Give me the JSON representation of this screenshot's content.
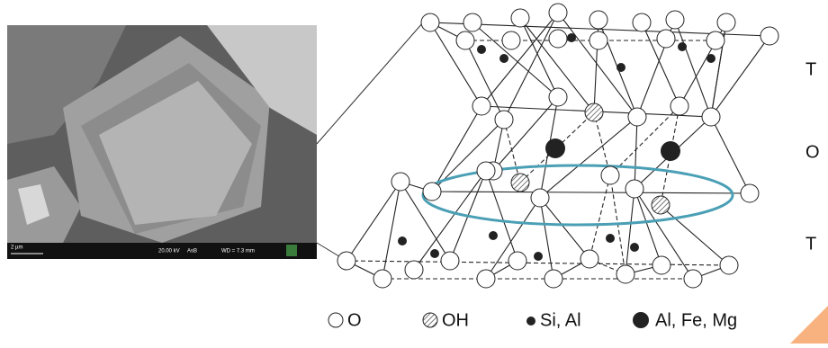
{
  "sem_image": {
    "scale_bar": "2 µm",
    "voltage": "20.00 kV",
    "detector": "AsB",
    "working_distance": "WD = 7.3 mm"
  },
  "layer_labels": [
    "T",
    "O",
    "T"
  ],
  "legend": [
    "O",
    "OH",
    "Si, Al",
    "Al, Fe, Mg"
  ]
}
